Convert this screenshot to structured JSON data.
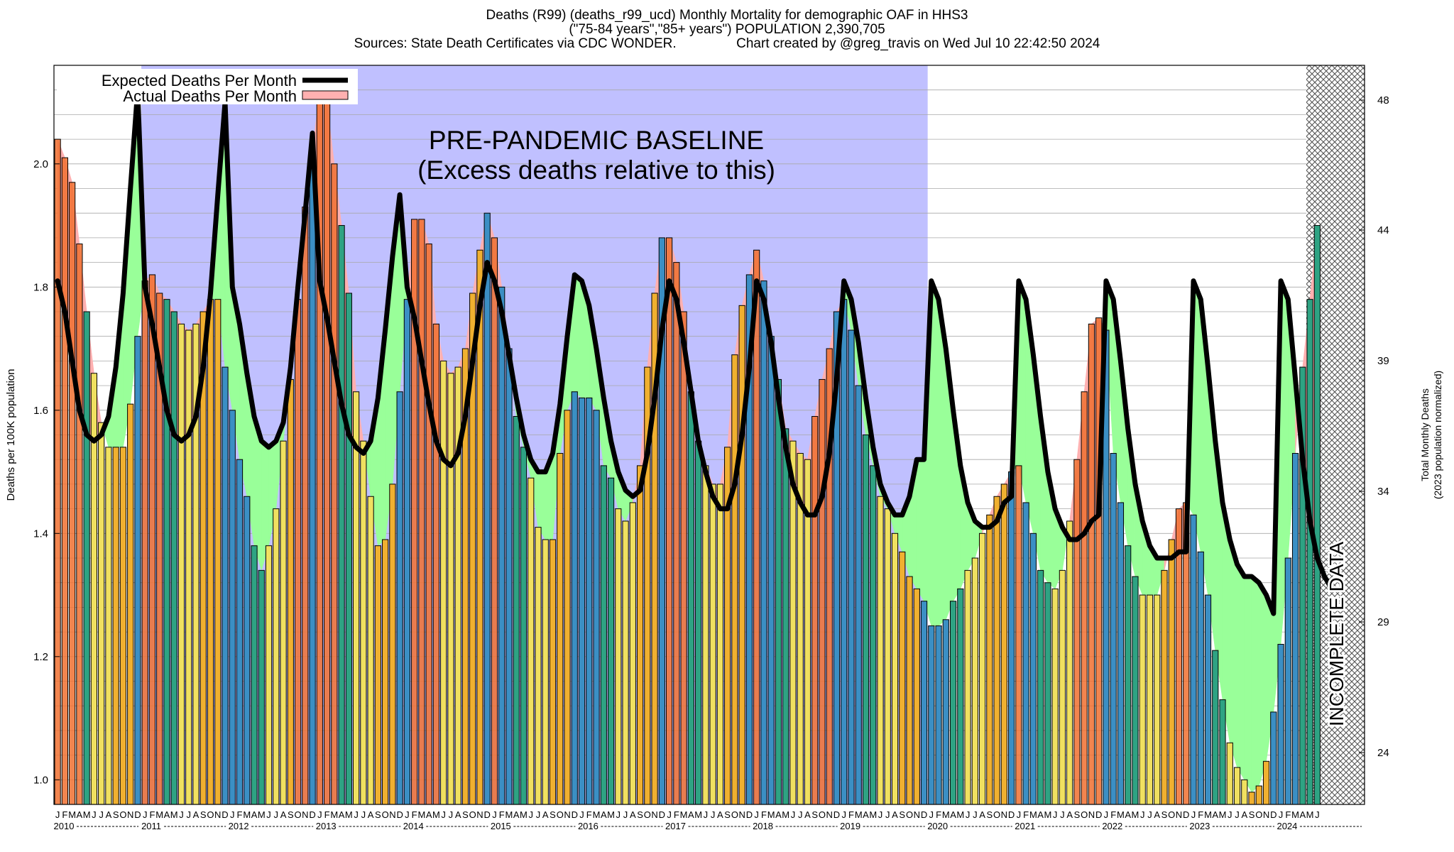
{
  "header": {
    "title_line1": "Deaths (R99) (deaths_r99_ucd) Monthly Mortality for demographic OAF in HHS3",
    "title_line2": "(\"75-84 years\",\"85+ years\") POPULATION 2,390,705",
    "title_line3": "Sources: State Death Certificates via CDC WONDER.                Chart created by @greg_travis on Wed Jul 10 22:42:50 2024"
  },
  "annotations": {
    "baseline_line1": "PRE-PANDEMIC BASELINE",
    "baseline_line2": "(Excess deaths relative to this)",
    "incomplete": "INCOMPLETE DATA"
  },
  "colors": {
    "baseline_region": "#c0c0ff",
    "expected_line": "#000000",
    "excess_fill": "#ffb0b0",
    "deficit_fill": "#99ff99",
    "winter_bar": "#3b8fc4",
    "spring_bar": "#2ea383",
    "summer_bar": "#f0e060",
    "fall_bar": "#f0b030",
    "excess_bar": "#f07030"
  },
  "chart_data": {
    "type": "bar",
    "ylabel": "Deaths per 100K population",
    "y2label_line1": "Total Monthly Deaths",
    "y2label_line2": "(2023 population normalized)",
    "ylim": [
      0.96,
      2.16
    ],
    "yticks": [
      "1.0",
      "1.2",
      "1.4",
      "1.6",
      "1.8",
      "2.0"
    ],
    "y2ticks": [
      "24",
      "29",
      "34",
      "39",
      "44",
      "48"
    ],
    "month_letters": [
      "J",
      "F",
      "M",
      "A",
      "M",
      "J",
      "J",
      "A",
      "S",
      "O",
      "N",
      "D"
    ],
    "years": [
      "2010",
      "2011",
      "2012",
      "2013",
      "2014",
      "2015",
      "2016",
      "2017",
      "2018",
      "2019",
      "2020",
      "2021",
      "2022",
      "2023",
      "2024"
    ],
    "start": "2010-01",
    "baseline_end": "2019-12",
    "incomplete_from": "2024-05",
    "legend": [
      "Expected Deaths Per Month",
      "Actual Deaths Per Month"
    ],
    "actual": [
      2.04,
      2.01,
      1.97,
      1.87,
      1.76,
      1.66,
      1.58,
      1.54,
      1.54,
      1.54,
      1.61,
      1.72,
      1.81,
      1.82,
      1.79,
      1.78,
      1.76,
      1.74,
      1.73,
      1.74,
      1.76,
      1.78,
      1.78,
      1.67,
      1.6,
      1.52,
      1.46,
      1.38,
      1.34,
      1.38,
      1.44,
      1.55,
      1.65,
      1.78,
      1.93,
      2.02,
      2.12,
      2.1,
      2.0,
      1.9,
      1.79,
      1.63,
      1.55,
      1.46,
      1.38,
      1.39,
      1.48,
      1.63,
      1.78,
      1.91,
      1.91,
      1.87,
      1.74,
      1.68,
      1.66,
      1.67,
      1.7,
      1.79,
      1.86,
      1.92,
      1.88,
      1.8,
      1.7,
      1.59,
      1.54,
      1.49,
      1.41,
      1.39,
      1.39,
      1.53,
      1.6,
      1.63,
      1.62,
      1.62,
      1.6,
      1.51,
      1.49,
      1.44,
      1.42,
      1.45,
      1.51,
      1.67,
      1.79,
      1.88,
      1.88,
      1.84,
      1.76,
      1.63,
      1.55,
      1.51,
      1.48,
      1.48,
      1.54,
      1.69,
      1.77,
      1.82,
      1.86,
      1.81,
      1.72,
      1.65,
      1.57,
      1.55,
      1.53,
      1.52,
      1.59,
      1.65,
      1.7,
      1.76,
      1.78,
      1.73,
      1.64,
      1.56,
      1.51,
      1.46,
      1.44,
      1.4,
      1.37,
      1.33,
      1.31,
      1.29,
      1.25,
      1.25,
      1.26,
      1.29,
      1.31,
      1.34,
      1.36,
      1.4,
      1.43,
      1.46,
      1.48,
      1.5,
      1.51,
      1.45,
      1.4,
      1.34,
      1.32,
      1.31,
      1.34,
      1.42,
      1.52,
      1.63,
      1.74,
      1.75,
      1.73,
      1.53,
      1.45,
      1.38,
      1.33,
      1.3,
      1.3,
      1.3,
      1.34,
      1.39,
      1.44,
      1.45,
      1.43,
      1.37,
      1.3,
      1.21,
      1.13,
      1.06,
      1.02,
      1.0,
      0.98,
      0.99,
      1.03,
      1.11,
      1.22,
      1.36,
      1.53,
      1.67,
      1.78,
      1.9
    ],
    "expected": [
      1.81,
      1.76,
      1.68,
      1.6,
      1.56,
      1.55,
      1.56,
      1.59,
      1.67,
      1.79,
      1.96,
      2.12,
      1.8,
      1.74,
      1.67,
      1.6,
      1.56,
      1.55,
      1.56,
      1.59,
      1.67,
      1.79,
      1.95,
      2.1,
      1.8,
      1.74,
      1.66,
      1.59,
      1.55,
      1.54,
      1.55,
      1.58,
      1.67,
      1.8,
      1.92,
      2.05,
      1.81,
      1.75,
      1.68,
      1.61,
      1.56,
      1.54,
      1.53,
      1.55,
      1.62,
      1.73,
      1.85,
      1.95,
      1.8,
      1.75,
      1.68,
      1.61,
      1.55,
      1.52,
      1.51,
      1.53,
      1.59,
      1.68,
      1.77,
      1.84,
      1.81,
      1.76,
      1.69,
      1.62,
      1.56,
      1.52,
      1.5,
      1.5,
      1.53,
      1.61,
      1.72,
      1.82,
      1.81,
      1.77,
      1.7,
      1.62,
      1.55,
      1.5,
      1.47,
      1.46,
      1.47,
      1.53,
      1.62,
      1.73,
      1.81,
      1.78,
      1.71,
      1.63,
      1.55,
      1.5,
      1.46,
      1.44,
      1.44,
      1.48,
      1.56,
      1.67,
      1.81,
      1.78,
      1.71,
      1.62,
      1.54,
      1.48,
      1.45,
      1.43,
      1.43,
      1.46,
      1.53,
      1.65,
      1.81,
      1.78,
      1.71,
      1.62,
      1.54,
      1.48,
      1.45,
      1.43,
      1.43,
      1.46,
      1.52,
      1.52,
      1.81,
      1.78,
      1.7,
      1.6,
      1.51,
      1.45,
      1.42,
      1.41,
      1.41,
      1.42,
      1.45,
      1.46,
      1.81,
      1.78,
      1.69,
      1.59,
      1.5,
      1.44,
      1.41,
      1.39,
      1.39,
      1.4,
      1.42,
      1.43,
      1.81,
      1.78,
      1.68,
      1.57,
      1.48,
      1.42,
      1.38,
      1.36,
      1.36,
      1.36,
      1.37,
      1.37,
      1.81,
      1.78,
      1.67,
      1.55,
      1.45,
      1.39,
      1.35,
      1.33,
      1.33,
      1.32,
      1.3,
      1.27,
      1.81,
      1.78,
      1.65,
      1.52,
      1.42,
      1.36,
      1.33,
      1.31
    ],
    "excess_months": [
      "2010-01",
      "2010-02",
      "2010-03",
      "2010-04",
      "2011-01",
      "2011-02",
      "2011-03",
      "2012-10",
      "2012-11",
      "2013-01",
      "2013-02",
      "2013-03",
      "2014-02",
      "2014-03",
      "2014-04",
      "2014-05",
      "2015-01",
      "2017-01",
      "2017-02",
      "2017-03",
      "2018-01",
      "2018-09",
      "2018-10",
      "2018-11",
      "2021-01",
      "2021-09",
      "2021-10",
      "2021-11",
      "2021-12",
      "2022-11",
      "2022-12"
    ]
  }
}
